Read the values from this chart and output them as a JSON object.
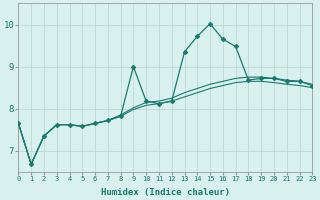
{
  "xlabel": "Humidex (Indice chaleur)",
  "xlim": [
    0,
    23
  ],
  "ylim": [
    6.5,
    10.5
  ],
  "yticks": [
    7,
    8,
    9,
    10
  ],
  "xticks": [
    0,
    1,
    2,
    3,
    4,
    5,
    6,
    7,
    8,
    9,
    10,
    11,
    12,
    13,
    14,
    15,
    16,
    17,
    18,
    19,
    20,
    21,
    22,
    23
  ],
  "bg_color": "#d8f0ee",
  "grid_color": "#b8d4d0",
  "line_color": "#1a7a6e",
  "line1_x": [
    0,
    1,
    2,
    3,
    4,
    5,
    6,
    7,
    8,
    9,
    10,
    11,
    12,
    13,
    14,
    15,
    16,
    17,
    18,
    19,
    20,
    21,
    22,
    23
  ],
  "line1_y": [
    7.65,
    6.68,
    7.35,
    7.62,
    7.62,
    7.58,
    7.65,
    7.72,
    7.82,
    9.0,
    8.18,
    8.12,
    8.18,
    9.35,
    9.72,
    10.02,
    9.65,
    9.48,
    8.68,
    8.72,
    8.72,
    8.65,
    8.65,
    8.55
  ],
  "line2_x": [
    0,
    1,
    2,
    3,
    4,
    5,
    6,
    7,
    8,
    9,
    10,
    11,
    12,
    13,
    14,
    15,
    16,
    17,
    18,
    19,
    20,
    21,
    22,
    23
  ],
  "line2_y": [
    7.65,
    6.68,
    7.35,
    7.62,
    7.62,
    7.58,
    7.65,
    7.72,
    7.85,
    8.02,
    8.15,
    8.18,
    8.25,
    8.38,
    8.48,
    8.58,
    8.65,
    8.72,
    8.75,
    8.75,
    8.72,
    8.68,
    8.65,
    8.58
  ],
  "line3_x": [
    0,
    1,
    2,
    3,
    4,
    5,
    6,
    7,
    8,
    9,
    10,
    11,
    12,
    13,
    14,
    15,
    16,
    17,
    18,
    19,
    20,
    21,
    22,
    23
  ],
  "line3_y": [
    7.65,
    6.68,
    7.35,
    7.62,
    7.62,
    7.58,
    7.65,
    7.72,
    7.82,
    7.98,
    8.08,
    8.12,
    8.18,
    8.28,
    8.38,
    8.48,
    8.55,
    8.62,
    8.65,
    8.65,
    8.62,
    8.58,
    8.55,
    8.5
  ]
}
